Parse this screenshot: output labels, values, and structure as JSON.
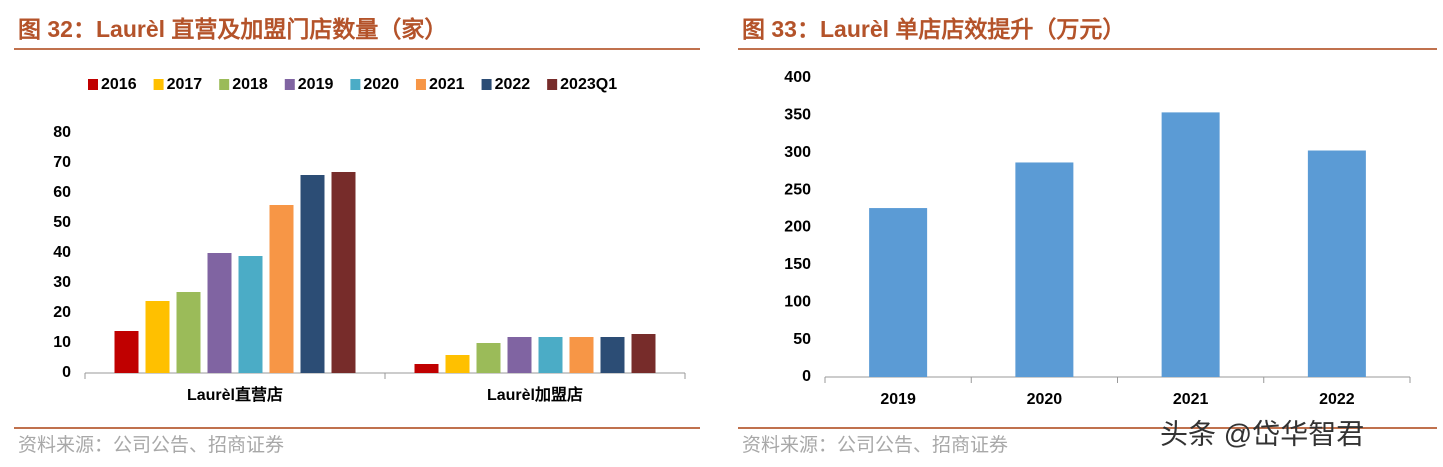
{
  "chart_data": [
    {
      "type": "bar",
      "title": "图 32：Laurèl 直营及加盟门店数量（家）",
      "categories": [
        "Laurèl直营店",
        "Laurèl加盟店"
      ],
      "series": [
        {
          "name": "2016",
          "color": "#c00000",
          "values": [
            14,
            3
          ]
        },
        {
          "name": "2017",
          "color": "#ffc000",
          "values": [
            24,
            6
          ]
        },
        {
          "name": "2018",
          "color": "#9bbb59",
          "values": [
            27,
            10
          ]
        },
        {
          "name": "2019",
          "color": "#8064a2",
          "values": [
            40,
            12
          ]
        },
        {
          "name": "2020",
          "color": "#4bacc6",
          "values": [
            39,
            12
          ]
        },
        {
          "name": "2021",
          "color": "#f79646",
          "values": [
            56,
            12
          ]
        },
        {
          "name": "2022",
          "color": "#2c4d75",
          "values": [
            66,
            12
          ]
        },
        {
          "name": "2023Q1",
          "color": "#772c2a",
          "values": [
            67,
            13
          ]
        }
      ],
      "ylim": [
        0,
        80
      ],
      "yticks": [
        0,
        10,
        20,
        30,
        40,
        50,
        60,
        70,
        80
      ],
      "grid": false,
      "legend": "top",
      "source": "资料来源：公司公告、招商证券"
    },
    {
      "type": "bar",
      "title": "图 33：Laurèl 单店店效提升（万元）",
      "categories": [
        "2019",
        "2020",
        "2021",
        "2022"
      ],
      "values": [
        226,
        287,
        354,
        303
      ],
      "color": "#5b9bd5",
      "ylim": [
        0,
        400
      ],
      "yticks": [
        0,
        50,
        100,
        150,
        200,
        250,
        300,
        350,
        400
      ],
      "grid": false,
      "source": "资料来源：公司公告、招商证券"
    }
  ],
  "watermark": "头条 @岱华智君"
}
